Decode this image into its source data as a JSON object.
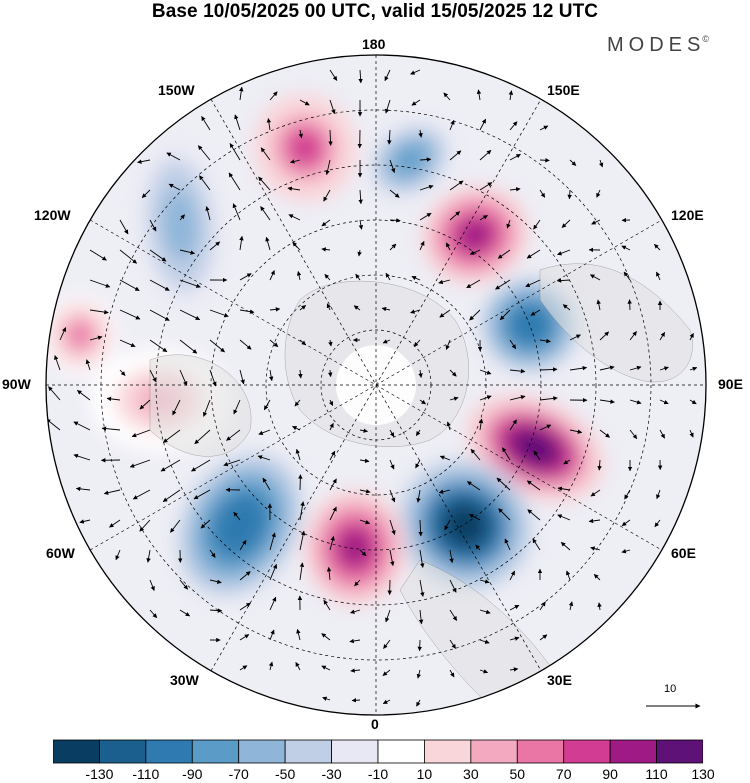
{
  "title": "Base 10/05/2025 00 UTC, valid 15/05/2025 12 UTC",
  "brand": "MODES",
  "brand_mark": "©",
  "longitude_labels": {
    "l180": "180",
    "l150E": "150E",
    "l120E": "120E",
    "l90E": "90E",
    "l60E": "60E",
    "l30E": "30E",
    "l0": "0",
    "l30W": "30W",
    "l60W": "60W",
    "l90W": "90W",
    "l120W": "120W",
    "l150W": "150W"
  },
  "vector_reference": {
    "value": "10"
  },
  "colorbar": {
    "ticks": [
      "-130",
      "-110",
      "-90",
      "-70",
      "-50",
      "-30",
      "-10",
      "10",
      "30",
      "50",
      "70",
      "90",
      "110",
      "130"
    ],
    "colors": [
      "#0a3d62",
      "#1b5f8e",
      "#2f7ab0",
      "#5a9bc8",
      "#8fb6d9",
      "#c0cfe6",
      "#e8e8f4",
      "#ffffff",
      "#f9d6da",
      "#f3aac0",
      "#ea76a6",
      "#d23c93",
      "#a01a85",
      "#5e1177"
    ]
  },
  "anomaly_centers": [
    {
      "sign": "positive",
      "value": 80
    },
    {
      "sign": "negative",
      "value": -60
    },
    {
      "sign": "positive",
      "value": 100
    },
    {
      "sign": "negative",
      "value": -100
    },
    {
      "sign": "positive",
      "value": 130
    },
    {
      "sign": "negative",
      "value": -130
    },
    {
      "sign": "positive",
      "value": 110
    },
    {
      "sign": "negative",
      "value": -100
    },
    {
      "sign": "positive",
      "value": 60
    },
    {
      "sign": "negative",
      "value": -70
    },
    {
      "sign": "positive",
      "value": 40
    }
  ]
}
